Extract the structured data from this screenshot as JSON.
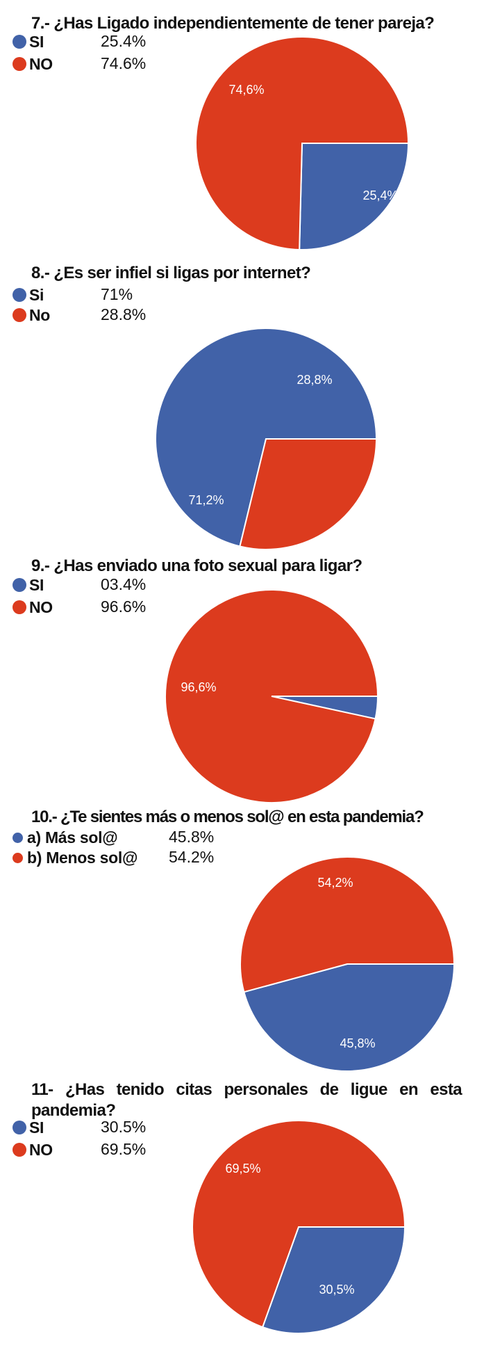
{
  "colors": {
    "blue": "#4162a8",
    "red": "#dc3b1e",
    "separator": "#ffffff"
  },
  "chart_data": [
    {
      "type": "pie",
      "title": "7.- ¿Has Ligado independientemente de tener pareja?",
      "legend": [
        {
          "label": "SI",
          "value_text": "25.4%",
          "color": "#4162a8"
        },
        {
          "label": "NO",
          "value_text": "74.6%",
          "color": "#dc3b1e"
        }
      ],
      "slices": [
        {
          "label": "SI",
          "value": 25.4,
          "data_label": "25,4%",
          "color": "#4162a8"
        },
        {
          "label": "NO",
          "value": 74.6,
          "data_label": "74,6%",
          "color": "#dc3b1e"
        }
      ]
    },
    {
      "type": "pie",
      "title": "8.-  ¿Es ser infiel si ligas por internet?",
      "legend": [
        {
          "label": "Si",
          "value_text": "71%",
          "color": "#4162a8"
        },
        {
          "label": "No",
          "value_text": "28.8%",
          "color": "#dc3b1e"
        }
      ],
      "slices": [
        {
          "label": "Si",
          "value": 71.2,
          "data_label": "71,2%",
          "color": "#4162a8"
        },
        {
          "label": "No",
          "value": 28.8,
          "data_label": "28,8%",
          "color": "#dc3b1e"
        }
      ]
    },
    {
      "type": "pie",
      "title": "9.- ¿Has enviado una foto sexual para ligar?",
      "legend": [
        {
          "label": "SI",
          "value_text": "03.4%",
          "color": "#4162a8"
        },
        {
          "label": "NO",
          "value_text": "96.6%",
          "color": "#dc3b1e"
        }
      ],
      "slices": [
        {
          "label": "SI",
          "value": 3.4,
          "data_label": "",
          "color": "#4162a8"
        },
        {
          "label": "NO",
          "value": 96.6,
          "data_label": "96,6%",
          "color": "#dc3b1e"
        }
      ]
    },
    {
      "type": "pie",
      "title": "10.- ¿Te sientes más o menos sol@ en esta pandemia?",
      "legend": [
        {
          "label": "a) Más sol@",
          "value_text": "45.8%",
          "color": "#4162a8"
        },
        {
          "label": "b) Menos sol@",
          "value_text": "54.2%",
          "color": "#dc3b1e"
        }
      ],
      "slices": [
        {
          "label": "a) Más sol@",
          "value": 45.8,
          "data_label": "45,8%",
          "color": "#4162a8"
        },
        {
          "label": "b) Menos sol@",
          "value": 54.2,
          "data_label": "54,2%",
          "color": "#dc3b1e"
        }
      ]
    },
    {
      "type": "pie",
      "title": "11- ¿Has tenido citas personales de ligue en esta pandemia?",
      "legend": [
        {
          "label": "SI",
          "value_text": "30.5%",
          "color": "#4162a8"
        },
        {
          "label": "NO",
          "value_text": "69.5%",
          "color": "#dc3b1e"
        }
      ],
      "slices": [
        {
          "label": "SI",
          "value": 30.5,
          "data_label": "30,5%",
          "color": "#4162a8"
        },
        {
          "label": "NO",
          "value": 69.5,
          "data_label": "69,5%",
          "color": "#dc3b1e"
        }
      ]
    }
  ]
}
